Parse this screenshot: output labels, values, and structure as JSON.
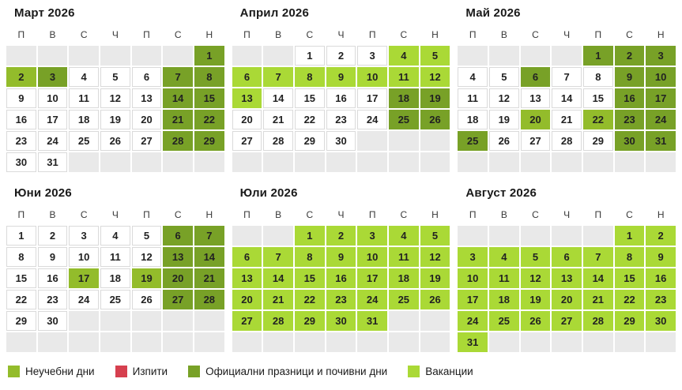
{
  "weekdays": [
    "П",
    "В",
    "С",
    "Ч",
    "П",
    "С",
    "Н"
  ],
  "colors": {
    "noschool": "#93bc2b",
    "exams": "#d6404f",
    "holiday": "#78a127",
    "vacation": "#aad936",
    "empty_cell": "#e9e9e9",
    "day_text": "#222222"
  },
  "cell_types": {
    "e": "empty",
    "w": "school-day",
    "n": "noschool",
    "h": "holiday",
    "v": "vacation"
  },
  "legend": [
    {
      "label": "Неучебни дни",
      "type": "noschool"
    },
    {
      "label": "Изпити",
      "type": "exams"
    },
    {
      "label": "Официални празници и почивни дни",
      "type": "holiday"
    },
    {
      "label": "Ваканции",
      "type": "vacation"
    }
  ],
  "months": [
    {
      "title": "Март 2026",
      "cells": [
        [
          "",
          "e"
        ],
        [
          "",
          "e"
        ],
        [
          "",
          "e"
        ],
        [
          "",
          "e"
        ],
        [
          "",
          "e"
        ],
        [
          "",
          "e"
        ],
        [
          "1",
          "h"
        ],
        [
          "2",
          "n"
        ],
        [
          "3",
          "h"
        ],
        [
          "4",
          "w"
        ],
        [
          "5",
          "w"
        ],
        [
          "6",
          "w"
        ],
        [
          "7",
          "h"
        ],
        [
          "8",
          "h"
        ],
        [
          "9",
          "w"
        ],
        [
          "10",
          "w"
        ],
        [
          "11",
          "w"
        ],
        [
          "12",
          "w"
        ],
        [
          "13",
          "w"
        ],
        [
          "14",
          "h"
        ],
        [
          "15",
          "h"
        ],
        [
          "16",
          "w"
        ],
        [
          "17",
          "w"
        ],
        [
          "18",
          "w"
        ],
        [
          "19",
          "w"
        ],
        [
          "20",
          "w"
        ],
        [
          "21",
          "h"
        ],
        [
          "22",
          "h"
        ],
        [
          "23",
          "w"
        ],
        [
          "24",
          "w"
        ],
        [
          "25",
          "w"
        ],
        [
          "26",
          "w"
        ],
        [
          "27",
          "w"
        ],
        [
          "28",
          "h"
        ],
        [
          "29",
          "h"
        ],
        [
          "30",
          "w"
        ],
        [
          "31",
          "w"
        ],
        [
          "",
          "e"
        ],
        [
          "",
          "e"
        ],
        [
          "",
          "e"
        ],
        [
          "",
          "e"
        ],
        [
          "",
          "e"
        ]
      ]
    },
    {
      "title": "Април 2026",
      "cells": [
        [
          "",
          "e"
        ],
        [
          "",
          "e"
        ],
        [
          "1",
          "w"
        ],
        [
          "2",
          "w"
        ],
        [
          "3",
          "w"
        ],
        [
          "4",
          "v"
        ],
        [
          "5",
          "v"
        ],
        [
          "6",
          "v"
        ],
        [
          "7",
          "v"
        ],
        [
          "8",
          "v"
        ],
        [
          "9",
          "v"
        ],
        [
          "10",
          "v"
        ],
        [
          "11",
          "v"
        ],
        [
          "12",
          "v"
        ],
        [
          "13",
          "v"
        ],
        [
          "14",
          "w"
        ],
        [
          "15",
          "w"
        ],
        [
          "16",
          "w"
        ],
        [
          "17",
          "w"
        ],
        [
          "18",
          "h"
        ],
        [
          "19",
          "h"
        ],
        [
          "20",
          "w"
        ],
        [
          "21",
          "w"
        ],
        [
          "22",
          "w"
        ],
        [
          "23",
          "w"
        ],
        [
          "24",
          "w"
        ],
        [
          "25",
          "h"
        ],
        [
          "26",
          "h"
        ],
        [
          "27",
          "w"
        ],
        [
          "28",
          "w"
        ],
        [
          "29",
          "w"
        ],
        [
          "30",
          "w"
        ],
        [
          "",
          "e"
        ],
        [
          "",
          "e"
        ],
        [
          "",
          "e"
        ],
        [
          "",
          "e"
        ],
        [
          "",
          "e"
        ],
        [
          "",
          "e"
        ],
        [
          "",
          "e"
        ],
        [
          "",
          "e"
        ],
        [
          "",
          "e"
        ],
        [
          "",
          "e"
        ]
      ]
    },
    {
      "title": "Май 2026",
      "cells": [
        [
          "",
          "e"
        ],
        [
          "",
          "e"
        ],
        [
          "",
          "e"
        ],
        [
          "",
          "e"
        ],
        [
          "1",
          "h"
        ],
        [
          "2",
          "h"
        ],
        [
          "3",
          "h"
        ],
        [
          "4",
          "w"
        ],
        [
          "5",
          "w"
        ],
        [
          "6",
          "h"
        ],
        [
          "7",
          "w"
        ],
        [
          "8",
          "w"
        ],
        [
          "9",
          "h"
        ],
        [
          "10",
          "h"
        ],
        [
          "11",
          "w"
        ],
        [
          "12",
          "w"
        ],
        [
          "13",
          "w"
        ],
        [
          "14",
          "w"
        ],
        [
          "15",
          "w"
        ],
        [
          "16",
          "h"
        ],
        [
          "17",
          "h"
        ],
        [
          "18",
          "w"
        ],
        [
          "19",
          "w"
        ],
        [
          "20",
          "n"
        ],
        [
          "21",
          "w"
        ],
        [
          "22",
          "n"
        ],
        [
          "23",
          "h"
        ],
        [
          "24",
          "h"
        ],
        [
          "25",
          "h"
        ],
        [
          "26",
          "w"
        ],
        [
          "27",
          "w"
        ],
        [
          "28",
          "w"
        ],
        [
          "29",
          "w"
        ],
        [
          "30",
          "h"
        ],
        [
          "31",
          "h"
        ],
        [
          "",
          "e"
        ],
        [
          "",
          "e"
        ],
        [
          "",
          "e"
        ],
        [
          "",
          "e"
        ],
        [
          "",
          "e"
        ],
        [
          "",
          "e"
        ],
        [
          "",
          "e"
        ]
      ]
    },
    {
      "title": "Юни 2026",
      "cells": [
        [
          "1",
          "w"
        ],
        [
          "2",
          "w"
        ],
        [
          "3",
          "w"
        ],
        [
          "4",
          "w"
        ],
        [
          "5",
          "w"
        ],
        [
          "6",
          "h"
        ],
        [
          "7",
          "h"
        ],
        [
          "8",
          "w"
        ],
        [
          "9",
          "w"
        ],
        [
          "10",
          "w"
        ],
        [
          "11",
          "w"
        ],
        [
          "12",
          "w"
        ],
        [
          "13",
          "h"
        ],
        [
          "14",
          "h"
        ],
        [
          "15",
          "w"
        ],
        [
          "16",
          "w"
        ],
        [
          "17",
          "n"
        ],
        [
          "18",
          "w"
        ],
        [
          "19",
          "n"
        ],
        [
          "20",
          "h"
        ],
        [
          "21",
          "h"
        ],
        [
          "22",
          "w"
        ],
        [
          "23",
          "w"
        ],
        [
          "24",
          "w"
        ],
        [
          "25",
          "w"
        ],
        [
          "26",
          "w"
        ],
        [
          "27",
          "h"
        ],
        [
          "28",
          "h"
        ],
        [
          "29",
          "w"
        ],
        [
          "30",
          "w"
        ],
        [
          "",
          "e"
        ],
        [
          "",
          "e"
        ],
        [
          "",
          "e"
        ],
        [
          "",
          "e"
        ],
        [
          "",
          "e"
        ],
        [
          "",
          "e"
        ],
        [
          "",
          "e"
        ],
        [
          "",
          "e"
        ],
        [
          "",
          "e"
        ],
        [
          "",
          "e"
        ],
        [
          "",
          "e"
        ],
        [
          "",
          "e"
        ]
      ]
    },
    {
      "title": "Юли 2026",
      "cells": [
        [
          "",
          "e"
        ],
        [
          "",
          "e"
        ],
        [
          "1",
          "v"
        ],
        [
          "2",
          "v"
        ],
        [
          "3",
          "v"
        ],
        [
          "4",
          "v"
        ],
        [
          "5",
          "v"
        ],
        [
          "6",
          "v"
        ],
        [
          "7",
          "v"
        ],
        [
          "8",
          "v"
        ],
        [
          "9",
          "v"
        ],
        [
          "10",
          "v"
        ],
        [
          "11",
          "v"
        ],
        [
          "12",
          "v"
        ],
        [
          "13",
          "v"
        ],
        [
          "14",
          "v"
        ],
        [
          "15",
          "v"
        ],
        [
          "16",
          "v"
        ],
        [
          "17",
          "v"
        ],
        [
          "18",
          "v"
        ],
        [
          "19",
          "v"
        ],
        [
          "20",
          "v"
        ],
        [
          "21",
          "v"
        ],
        [
          "22",
          "v"
        ],
        [
          "23",
          "v"
        ],
        [
          "24",
          "v"
        ],
        [
          "25",
          "v"
        ],
        [
          "26",
          "v"
        ],
        [
          "27",
          "v"
        ],
        [
          "28",
          "v"
        ],
        [
          "29",
          "v"
        ],
        [
          "30",
          "v"
        ],
        [
          "31",
          "v"
        ],
        [
          "",
          "e"
        ],
        [
          "",
          "e"
        ],
        [
          "",
          "e"
        ],
        [
          "",
          "e"
        ],
        [
          "",
          "e"
        ],
        [
          "",
          "e"
        ],
        [
          "",
          "e"
        ],
        [
          "",
          "e"
        ],
        [
          "",
          "e"
        ]
      ]
    },
    {
      "title": "Август 2026",
      "cells": [
        [
          "",
          "e"
        ],
        [
          "",
          "e"
        ],
        [
          "",
          "e"
        ],
        [
          "",
          "e"
        ],
        [
          "",
          "e"
        ],
        [
          "1",
          "v"
        ],
        [
          "2",
          "v"
        ],
        [
          "3",
          "v"
        ],
        [
          "4",
          "v"
        ],
        [
          "5",
          "v"
        ],
        [
          "6",
          "v"
        ],
        [
          "7",
          "v"
        ],
        [
          "8",
          "v"
        ],
        [
          "9",
          "v"
        ],
        [
          "10",
          "v"
        ],
        [
          "11",
          "v"
        ],
        [
          "12",
          "v"
        ],
        [
          "13",
          "v"
        ],
        [
          "14",
          "v"
        ],
        [
          "15",
          "v"
        ],
        [
          "16",
          "v"
        ],
        [
          "17",
          "v"
        ],
        [
          "18",
          "v"
        ],
        [
          "19",
          "v"
        ],
        [
          "20",
          "v"
        ],
        [
          "21",
          "v"
        ],
        [
          "22",
          "v"
        ],
        [
          "23",
          "v"
        ],
        [
          "24",
          "v"
        ],
        [
          "25",
          "v"
        ],
        [
          "26",
          "v"
        ],
        [
          "27",
          "v"
        ],
        [
          "28",
          "v"
        ],
        [
          "29",
          "v"
        ],
        [
          "30",
          "v"
        ],
        [
          "31",
          "v"
        ],
        [
          "",
          "e"
        ],
        [
          "",
          "e"
        ],
        [
          "",
          "e"
        ],
        [
          "",
          "e"
        ],
        [
          "",
          "e"
        ],
        [
          "",
          "e"
        ]
      ]
    }
  ]
}
